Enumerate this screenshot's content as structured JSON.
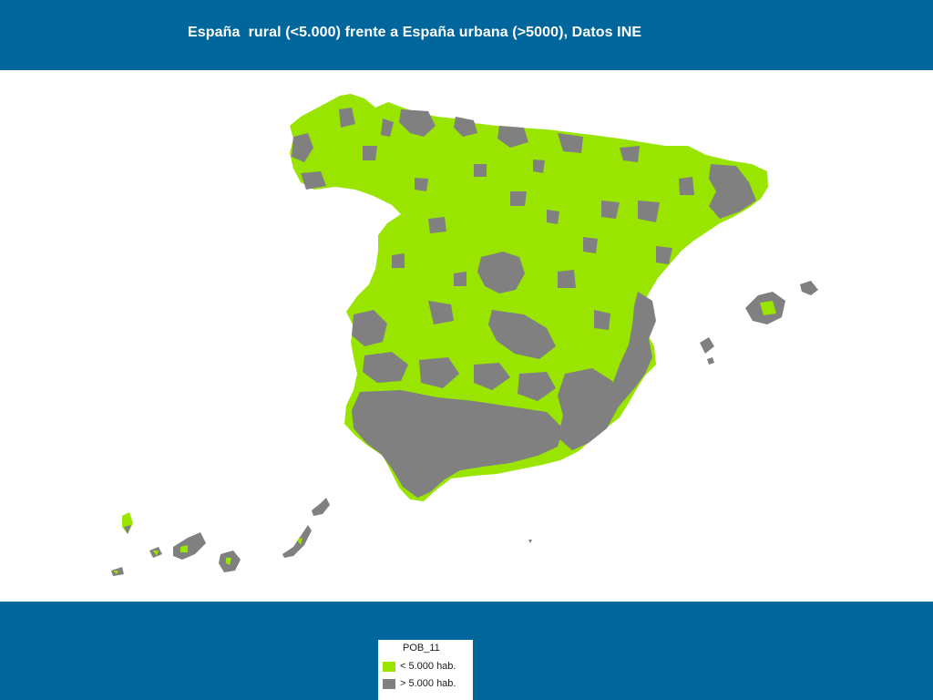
{
  "title": "España  rural (<5.000) frente a España urbana (>5000), Datos INE",
  "legend": {
    "title": "POB_11",
    "items": [
      {
        "label": "< 5.000 hab.",
        "color": "#99e500"
      },
      {
        "label": "> 5.000 hab.",
        "color": "#808080"
      }
    ]
  },
  "colors": {
    "band": "#00669b",
    "rural": "#99e500",
    "urban": "#808080"
  }
}
